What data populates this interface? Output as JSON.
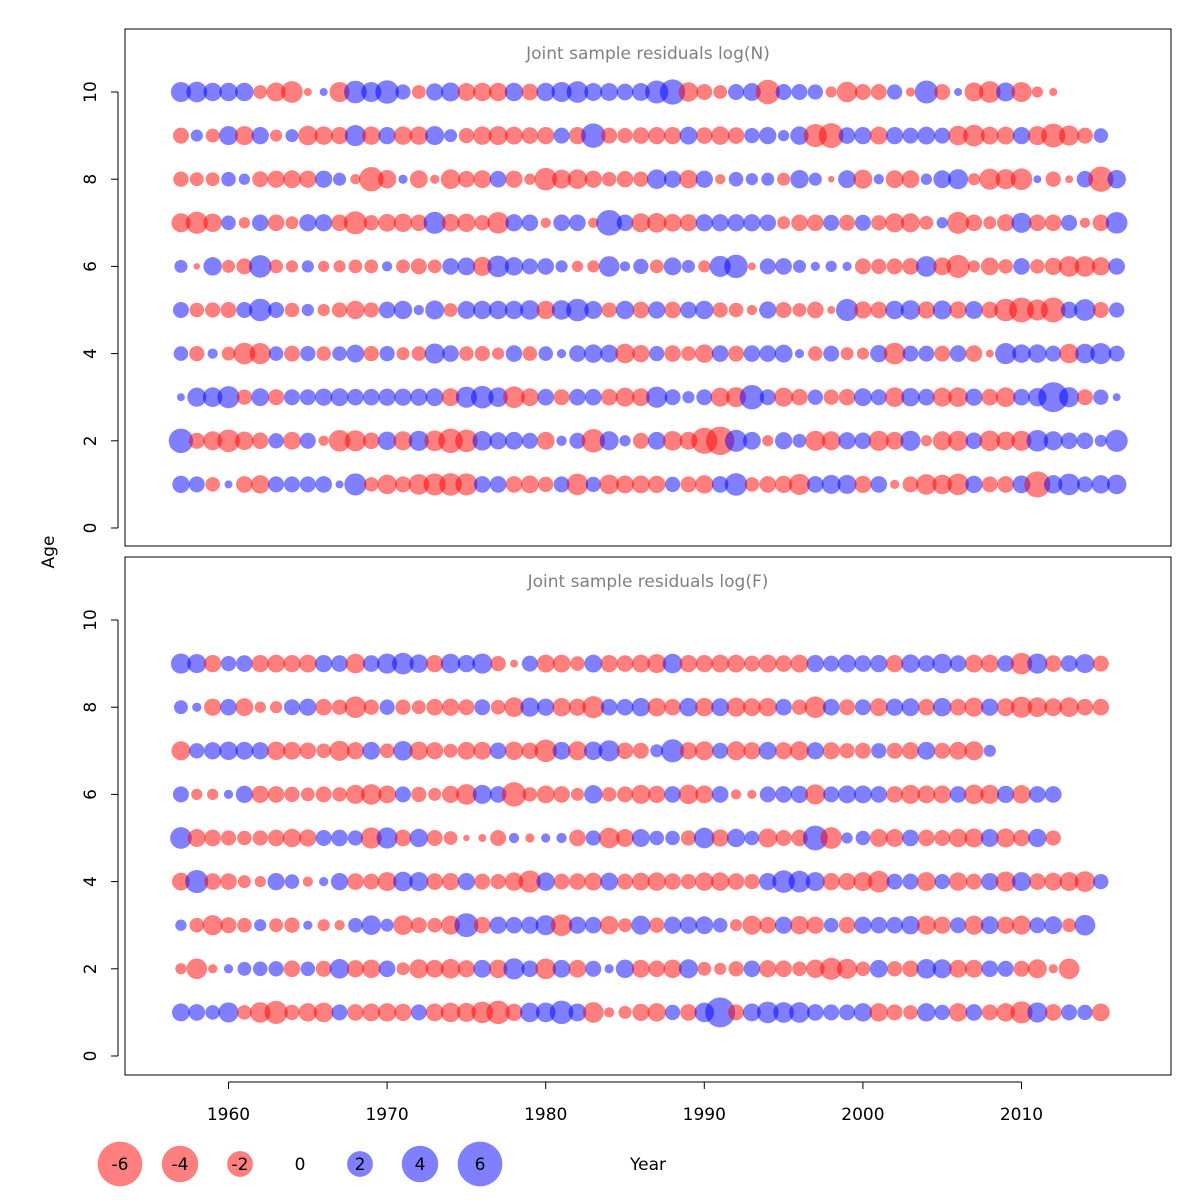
{
  "y_axis_label": "Age",
  "x_axis_label": "Year",
  "colors": {
    "negative": "#ff0000",
    "positive": "#0000ff",
    "title": "#808080",
    "frame": "#000000"
  },
  "legend": {
    "entries": [
      {
        "label": "-6",
        "value": -6
      },
      {
        "label": "-4",
        "value": -4
      },
      {
        "label": "-2",
        "value": -2
      },
      {
        "label": "0",
        "value": 0
      },
      {
        "label": "2",
        "value": 2
      },
      {
        "label": "4",
        "value": 4
      },
      {
        "label": "6",
        "value": 6
      }
    ]
  },
  "chart_data": [
    {
      "type": "scatter",
      "subtype": "bubble",
      "title": "Joint sample residuals log(N)",
      "xlim": [
        1954,
        2018
      ],
      "ylim": [
        -0.6,
        11
      ],
      "yticks": [
        0,
        2,
        4,
        6,
        8,
        10
      ],
      "xticks": [
        1960,
        1970,
        1980,
        1990,
        2000,
        2010
      ],
      "years": [
        1957,
        2016
      ],
      "ages": [
        1,
        2,
        3,
        4,
        5,
        6,
        7,
        8,
        9,
        10
      ],
      "residual_rows": {
        "1": [
          1.4,
          1.2,
          -1.0,
          0.3,
          -1.3,
          -1.6,
          1.2,
          1.2,
          1.2,
          1.3,
          0.3,
          2.3,
          -1.0,
          -1.8,
          -1.2,
          -2.0,
          -2.3,
          -2.4,
          -2.3,
          1.3,
          1.3,
          -1.3,
          -1.5,
          -1.1,
          1.2,
          -2.2,
          1.1,
          -1.8,
          -1.5,
          -1.5,
          -1.4,
          1.1,
          -1.2,
          -1.6,
          1.3,
          2.4,
          -1.0,
          -1.3,
          -1.4,
          -2.1,
          1.3,
          1.7,
          1.7,
          -1.4,
          1.3,
          -0.4,
          -1.2,
          -2.0,
          -1.8,
          -2.2,
          1.4,
          -1.2,
          -1.3,
          1.5,
          -3.2,
          1.6,
          2.2,
          1.2,
          1.6,
          1.8
        ],
        "2": [
          2.8,
          -1.2,
          -1.7,
          -2.4,
          -1.6,
          -1.3,
          1.1,
          -1.5,
          1.2,
          -0.5,
          -2.2,
          -2.1,
          -1.3,
          1.6,
          -1.7,
          1.9,
          -2.0,
          -2.8,
          -2.4,
          1.8,
          1.4,
          1.5,
          1.2,
          -1.5,
          0.5,
          1.2,
          -2.6,
          1.7,
          0.6,
          -1.2,
          1.5,
          -1.8,
          -1.5,
          -3.2,
          -3.8,
          2.3,
          1.5,
          -0.6,
          1.4,
          0.9,
          -1.9,
          -1.7,
          1.4,
          1.3,
          -1.9,
          -1.5,
          1.9,
          -0.6,
          -1.7,
          -1.9,
          1.3,
          -2.0,
          -1.6,
          -1.9,
          2.2,
          1.7,
          1.3,
          1.3,
          0.7,
          2.3
        ],
        "3": [
          0.3,
          1.7,
          1.8,
          2.3,
          -1.1,
          1.5,
          -1.2,
          1.2,
          1.2,
          1.4,
          1.5,
          1.3,
          1.3,
          1.4,
          1.4,
          1.4,
          1.5,
          -1.5,
          2.1,
          2.4,
          1.8,
          -2.2,
          -1.5,
          1.3,
          -1.2,
          1.3,
          1.3,
          -1.3,
          -1.7,
          -1.5,
          2.1,
          1.2,
          0.7,
          1.2,
          -1.7,
          -1.9,
          2.8,
          1.2,
          -1.7,
          -1.3,
          1.1,
          -1.1,
          -1.3,
          1.5,
          1.2,
          -1.8,
          1.6,
          1.3,
          -1.7,
          -1.8,
          1.4,
          -1.3,
          -1.8,
          1.3,
          1.6,
          4.2,
          1.9,
          -1.2,
          1.1,
          0.3
        ],
        "4": [
          1.0,
          -1.1,
          0.5,
          -0.9,
          -2.2,
          -2.1,
          1.0,
          -1.2,
          1.1,
          -1.0,
          1.0,
          1.5,
          -1.1,
          1.1,
          -0.8,
          -1.0,
          1.9,
          1.3,
          -1.0,
          -1.1,
          -0.7,
          1.3,
          -1.0,
          1.0,
          0.4,
          1.3,
          1.6,
          1.5,
          -1.8,
          -1.4,
          1.1,
          -1.3,
          -1.0,
          -1.6,
          1.3,
          -1.2,
          1.3,
          1.3,
          1.5,
          0.4,
          -1.0,
          1.2,
          -0.8,
          -0.7,
          1.4,
          -2.2,
          1.2,
          1.2,
          -1.2,
          1.3,
          -1.3,
          -0.3,
          2.1,
          1.6,
          1.6,
          1.2,
          -1.8,
          1.8,
          2.1,
          1.2
        ],
        "5": [
          1.2,
          -1.0,
          -1.1,
          -1.2,
          1.2,
          2.4,
          1.2,
          -1.0,
          0.7,
          -0.7,
          -1.1,
          -1.6,
          -1.1,
          1.3,
          1.6,
          0.5,
          1.7,
          -0.9,
          1.5,
          1.6,
          1.6,
          1.6,
          1.8,
          -1.6,
          1.8,
          2.4,
          1.5,
          -1.1,
          1.6,
          -1.3,
          1.4,
          -1.3,
          1.3,
          1.6,
          -1.1,
          -1.0,
          -0.5,
          1.4,
          -1.2,
          -0.9,
          -1.3,
          -0.3,
          2.3,
          -1.4,
          -1.3,
          1.6,
          1.8,
          -1.4,
          1.7,
          -1.4,
          1.5,
          -1.3,
          -2.4,
          -2.9,
          -2.1,
          -2.9,
          1.3,
          2.2,
          -1.2,
          1.1
        ],
        "6": [
          0.8,
          -0.2,
          1.6,
          -0.8,
          -1.2,
          2.4,
          -0.9,
          -0.7,
          0.7,
          -0.6,
          -0.7,
          -0.9,
          -0.9,
          0.5,
          -0.9,
          -1.2,
          -0.9,
          1.3,
          1.5,
          -1.7,
          2.2,
          1.6,
          1.2,
          1.3,
          0.7,
          -0.6,
          -0.7,
          2.0,
          0.5,
          1.1,
          -0.9,
          1.5,
          0.8,
          -0.7,
          2.1,
          2.6,
          -0.3,
          1.2,
          1.3,
          0.8,
          0.4,
          0.6,
          0.4,
          -1.2,
          -1.1,
          -1.2,
          -1.3,
          2.0,
          -1.5,
          -2.5,
          -0.7,
          -1.5,
          -1.0,
          1.3,
          -1.0,
          -1.4,
          -2.0,
          -2.0,
          -1.6,
          1.3
        ],
        "7": [
          -1.7,
          -2.3,
          -1.6,
          1.0,
          -0.6,
          1.3,
          -1.3,
          -0.8,
          1.4,
          1.4,
          -1.3,
          -2.5,
          -1.1,
          -1.5,
          -1.6,
          -1.3,
          2.3,
          -1.5,
          -1.6,
          -1.1,
          -2.2,
          1.4,
          1.3,
          -0.5,
          1.3,
          1.3,
          -0.5,
          3.1,
          1.3,
          -1.7,
          -1.8,
          -1.5,
          -1.4,
          1.4,
          1.4,
          1.4,
          1.4,
          1.3,
          -0.8,
          -1.3,
          -1.3,
          1.2,
          -1.2,
          1.2,
          -1.1,
          -1.7,
          -1.7,
          -0.9,
          0.6,
          -2.3,
          -1.3,
          -0.8,
          -1.4,
          1.9,
          -1.3,
          -1.3,
          1.2,
          -0.5,
          -1.3,
          2.2
        ],
        "8": [
          -1.1,
          -0.9,
          -0.9,
          1.0,
          0.6,
          -1.2,
          -1.4,
          -1.5,
          -1.4,
          1.4,
          0.8,
          -0.5,
          -2.8,
          -1.6,
          0.4,
          -1.5,
          -0.4,
          -1.8,
          -1.3,
          -1.5,
          1.3,
          -1.4,
          -0.6,
          -2.4,
          -1.7,
          -1.8,
          -1.4,
          -1.0,
          -1.3,
          -1.1,
          1.8,
          1.4,
          -1.6,
          1.4,
          -0.5,
          1.0,
          0.7,
          0.8,
          -0.8,
          1.6,
          0.8,
          -0.2,
          1.5,
          -1.7,
          0.5,
          -1.5,
          -1.5,
          0.6,
          1.5,
          1.9,
          -0.7,
          -2.1,
          -1.9,
          -2.2,
          0.3,
          -1.1,
          -0.3,
          1.3,
          -3.0,
          1.6
        ],
        "9": [
          -1.2,
          0.7,
          -0.9,
          1.7,
          -1.7,
          1.4,
          -0.7,
          0.8,
          -1.8,
          -1.6,
          -1.4,
          2.1,
          -1.6,
          1.4,
          -1.6,
          -1.6,
          1.7,
          0.8,
          -1.1,
          -1.6,
          -1.7,
          -1.5,
          -1.3,
          -1.4,
          1.2,
          -1.4,
          2.8,
          -1.2,
          -1.1,
          -1.3,
          -1.4,
          -1.4,
          1.5,
          -1.3,
          -1.6,
          -1.3,
          1.1,
          1.4,
          0.6,
          1.6,
          -2.5,
          -2.9,
          1.3,
          1.4,
          -1.5,
          1.4,
          1.2,
          1.5,
          1.2,
          -1.8,
          -2.2,
          -1.5,
          -1.5,
          1.4,
          -1.7,
          -2.7,
          -1.9,
          -1.2,
          1.0
        ],
        "10": [
          1.9,
          2.0,
          1.6,
          1.6,
          1.6,
          -0.9,
          -1.7,
          -2.2,
          -0.3,
          0.3,
          -1.9,
          2.4,
          1.9,
          2.6,
          1.1,
          -0.9,
          1.4,
          1.7,
          -1.5,
          -1.6,
          -1.6,
          1.6,
          -1.3,
          1.6,
          1.9,
          2.2,
          1.5,
          1.5,
          1.3,
          1.5,
          2.5,
          3.0,
          -1.8,
          -1.2,
          -0.9,
          1.2,
          1.5,
          -2.8,
          1.2,
          1.2,
          1.1,
          -0.6,
          -2.0,
          -1.2,
          -1.2,
          1.1,
          -0.4,
          2.5,
          -1.2,
          0.3,
          -1.7,
          -2.2,
          1.7,
          -1.9,
          -0.6,
          -0.3
        ]
      }
    },
    {
      "type": "scatter",
      "subtype": "bubble",
      "title": "Joint sample residuals log(F)",
      "xlim": [
        1954,
        2018
      ],
      "ylim": [
        -0.6,
        11
      ],
      "yticks": [
        0,
        2,
        4,
        6,
        8,
        10
      ],
      "xticks": [
        1960,
        1970,
        1980,
        1990,
        2000,
        2010
      ],
      "years": [
        1957,
        2016
      ],
      "ages": [
        1,
        2,
        3,
        4,
        5,
        6,
        7,
        8,
        9
      ],
      "residual_rows": {
        "1": [
          1.5,
          1.3,
          1.0,
          1.9,
          -1.0,
          -2.0,
          -2.5,
          -1.1,
          -1.6,
          -1.8,
          1.2,
          -1.3,
          -1.5,
          -1.6,
          -1.4,
          1.2,
          -1.5,
          -1.8,
          -1.7,
          -2.2,
          -2.6,
          -1.4,
          1.8,
          1.8,
          2.6,
          1.5,
          -2.0,
          -0.5,
          -0.8,
          -1.4,
          -1.6,
          1.1,
          -1.3,
          1.8,
          4.2,
          -1.2,
          1.5,
          2.2,
          2.0,
          2.0,
          1.3,
          1.2,
          1.2,
          1.6,
          -1.6,
          -1.2,
          -1.0,
          1.6,
          1.1,
          -1.6,
          1.3,
          -1.2,
          -1.6,
          -2.3,
          1.9,
          -1.3,
          1.2,
          1.1,
          -1.5
        ],
        "2": [
          -0.6,
          -2.0,
          -0.4,
          0.4,
          0.9,
          1.0,
          1.1,
          -1.3,
          1.0,
          -1.2,
          1.8,
          -1.4,
          -1.6,
          1.3,
          -0.8,
          -1.7,
          -1.5,
          -1.8,
          -1.4,
          1.5,
          -1.6,
          2.1,
          1.3,
          -2.0,
          1.5,
          -1.5,
          1.2,
          0.4,
          1.6,
          -1.5,
          -1.3,
          -1.6,
          1.7,
          -0.9,
          -0.7,
          -1.1,
          1.3,
          -1.4,
          -1.3,
          -1.0,
          -1.6,
          -2.3,
          -1.9,
          -1.0,
          1.5,
          -1.1,
          -1.3,
          1.8,
          1.7,
          -1.5,
          -1.5,
          1.3,
          1.2,
          -1.2,
          -1.7,
          -0.4,
          -2.0
        ],
        "3": [
          0.6,
          -1.0,
          -1.9,
          -1.2,
          -1.0,
          0.7,
          -0.9,
          -1.1,
          0.4,
          -0.7,
          -0.5,
          1.0,
          1.8,
          0.8,
          -1.8,
          -1.2,
          -1.0,
          -1.7,
          2.7,
          -1.3,
          1.4,
          1.3,
          1.4,
          1.9,
          -2.2,
          1.4,
          1.3,
          -1.6,
          -0.9,
          1.7,
          -1.1,
          1.4,
          1.4,
          1.5,
          1.0,
          -0.7,
          -1.7,
          -1.3,
          1.4,
          -1.6,
          -1.4,
          1.0,
          -1.3,
          1.4,
          1.3,
          1.3,
          1.6,
          -1.7,
          -1.4,
          1.2,
          -1.7,
          1.5,
          -1.4,
          -1.7,
          1.2,
          1.5,
          -0.9,
          2.0
        ],
        "4": [
          -1.5,
          2.5,
          -1.3,
          -1.3,
          -0.8,
          -0.6,
          1.4,
          1.0,
          -0.5,
          0.4,
          1.4,
          -1.3,
          -1.2,
          -1.7,
          1.8,
          1.7,
          -1.3,
          -1.4,
          1.4,
          -1.2,
          -1.1,
          -1.6,
          -2.3,
          1.6,
          -1.2,
          -1.3,
          -1.5,
          1.5,
          -1.2,
          -1.5,
          -1.6,
          -1.3,
          -1.1,
          -1.6,
          -1.6,
          -1.3,
          -1.1,
          1.4,
          2.4,
          2.2,
          1.7,
          -1.4,
          -1.4,
          -1.7,
          -2.2,
          1.2,
          1.2,
          -1.7,
          1.1,
          -1.6,
          -1.2,
          1.4,
          -1.9,
          1.7,
          -1.3,
          -1.5,
          -1.7,
          -2.0,
          1.1
        ],
        "5": [
          2.2,
          -1.5,
          -1.3,
          -1.1,
          -1.0,
          -1.1,
          -1.3,
          -1.6,
          -1.4,
          1.2,
          1.3,
          1.1,
          -2.1,
          2.1,
          -1.3,
          1.6,
          -1.2,
          -0.9,
          -0.2,
          -0.3,
          -1.2,
          0.5,
          -0.4,
          0.4,
          0.5,
          -1.3,
          1.1,
          -2.0,
          -1.5,
          1.5,
          1.0,
          1.0,
          -1.1,
          2.0,
          -1.4,
          1.6,
          1.0,
          -1.7,
          -1.2,
          -1.3,
          2.9,
          -2.2,
          0.6,
          1.0,
          -1.5,
          -1.5,
          1.3,
          -1.3,
          -1.2,
          -1.6,
          -1.7,
          1.5,
          -1.7,
          -1.3,
          1.6,
          -1.1
        ],
        "6": [
          1.2,
          -0.6,
          -0.6,
          0.4,
          1.4,
          -1.4,
          -1.3,
          -1.1,
          -0.9,
          -1.2,
          -1.0,
          -1.7,
          -2.0,
          -1.5,
          1.2,
          -1.1,
          -0.8,
          -1.4,
          -2.0,
          1.7,
          1.3,
          -2.8,
          -1.0,
          -1.5,
          -1.3,
          -0.8,
          1.6,
          -1.0,
          -1.2,
          -1.7,
          -1.4,
          1.3,
          -1.8,
          -1.5,
          1.3,
          -0.5,
          -0.4,
          1.2,
          1.3,
          1.4,
          -1.9,
          1.2,
          1.5,
          1.5,
          1.3,
          -1.3,
          -1.7,
          -1.5,
          -1.5,
          1.3,
          -1.8,
          -1.7,
          1.4,
          -1.6,
          1.3,
          1.3
        ],
        "7": [
          -1.7,
          1.1,
          1.4,
          1.6,
          1.5,
          1.4,
          -1.6,
          -1.5,
          -1.3,
          -1.0,
          -1.9,
          -1.4,
          1.5,
          -1.0,
          1.8,
          -1.6,
          -1.4,
          -0.9,
          -1.5,
          -1.5,
          1.3,
          -1.6,
          -1.3,
          -2.4,
          1.5,
          -1.7,
          1.6,
          2.1,
          -1.3,
          -1.2,
          0.8,
          2.5,
          -1.4,
          -1.7,
          1.2,
          -1.7,
          -1.4,
          1.5,
          -1.4,
          -1.7,
          1.4,
          -1.4,
          -1.1,
          -1.2,
          1.1,
          -1.2,
          -1.4,
          1.5,
          -1.2,
          -1.5,
          -1.7,
          0.7
        ],
        "8": [
          0.9,
          0.4,
          -1.4,
          1.3,
          -1.5,
          -0.6,
          -0.7,
          1.2,
          1.4,
          -1.3,
          -1.1,
          -2.2,
          -1.1,
          1.1,
          -1.1,
          -0.9,
          -1.3,
          -1.4,
          -1.2,
          1.2,
          -1.0,
          -1.8,
          1.7,
          1.4,
          -1.6,
          -1.4,
          -2.3,
          1.3,
          1.3,
          1.6,
          -1.6,
          -1.3,
          1.6,
          -1.6,
          1.5,
          -1.7,
          -1.5,
          -1.6,
          1.3,
          -1.1,
          -2.2,
          1.3,
          -1.2,
          1.2,
          -1.5,
          1.4,
          1.5,
          -1.3,
          1.6,
          -1.3,
          -1.7,
          1.4,
          -1.5,
          -2.1,
          -1.8,
          -1.5,
          -1.8,
          -1.3,
          -1.3
        ],
        "9": [
          1.9,
          1.7,
          -1.4,
          1.1,
          1.3,
          -1.4,
          -1.5,
          -1.4,
          -1.5,
          1.4,
          1.3,
          -1.8,
          1.3,
          1.9,
          2.2,
          1.6,
          -1.4,
          1.8,
          1.4,
          1.9,
          -1.1,
          -0.3,
          1.2,
          -1.5,
          -1.5,
          -1.0,
          1.5,
          -1.4,
          -1.3,
          -1.5,
          -1.7,
          1.8,
          -1.4,
          -1.4,
          -1.5,
          -1.5,
          -1.2,
          -1.5,
          -1.3,
          -1.5,
          1.4,
          1.2,
          1.5,
          1.3,
          1.4,
          -1.4,
          1.6,
          1.3,
          1.8,
          1.3,
          -1.5,
          -1.5,
          1.3,
          -2.2,
          1.9,
          -1.3,
          1.3,
          1.7,
          -1.2
        ]
      }
    }
  ]
}
